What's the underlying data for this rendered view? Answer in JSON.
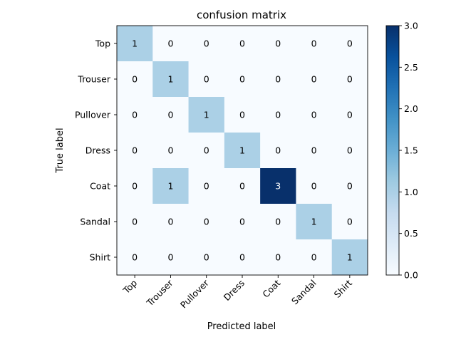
{
  "chart_data": {
    "type": "heatmap",
    "title": "confusion matrix",
    "xlabel": "Predicted label",
    "ylabel": "True label",
    "x_categories": [
      "Top",
      "Trouser",
      "Pullover",
      "Dress",
      "Coat",
      "Sandal",
      "Shirt"
    ],
    "y_categories": [
      "Top",
      "Trouser",
      "Pullover",
      "Dress",
      "Coat",
      "Sandal",
      "Shirt"
    ],
    "values": [
      [
        1,
        0,
        0,
        0,
        0,
        0,
        0
      ],
      [
        0,
        1,
        0,
        0,
        0,
        0,
        0
      ],
      [
        0,
        0,
        1,
        0,
        0,
        0,
        0
      ],
      [
        0,
        0,
        0,
        1,
        0,
        0,
        0
      ],
      [
        0,
        1,
        0,
        0,
        3,
        0,
        0
      ],
      [
        0,
        0,
        0,
        0,
        0,
        1,
        0
      ],
      [
        0,
        0,
        0,
        0,
        0,
        0,
        1
      ]
    ],
    "colorbar": {
      "colormap": "Blues",
      "min": 0.0,
      "max": 3.0,
      "ticks": [
        "0.0",
        "0.5",
        "1.0",
        "1.5",
        "2.0",
        "2.5",
        "3.0"
      ]
    },
    "grid": false
  }
}
